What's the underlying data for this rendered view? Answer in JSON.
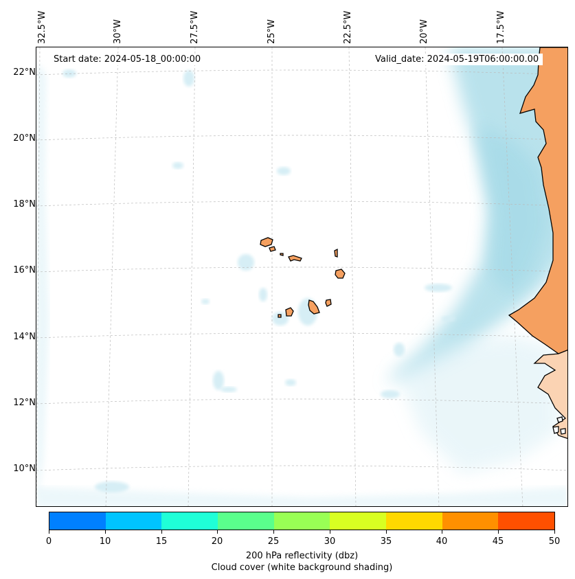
{
  "map": {
    "start_date": "Start date: 2024-05-18_00:00:00",
    "valid_date": "Valid_date: 2024-05-19T06:00:00.00",
    "lon_labels": [
      "32.5°W",
      "30°W",
      "27.5°W",
      "25°W",
      "22.5°W",
      "20°W",
      "17.5°W"
    ],
    "lat_labels": [
      "22°N",
      "20°N",
      "18°N",
      "16°N",
      "14°N",
      "12°N",
      "10°N"
    ],
    "colors": {
      "land": "#f5a060",
      "land_light": "#fbd3b3",
      "cloud": "#a8dbe8",
      "cloud_light": "#d6eef5",
      "gridline": "#bbbbbb"
    }
  },
  "colorbar": {
    "ticks": [
      "0",
      "10",
      "15",
      "20",
      "25",
      "30",
      "35",
      "40",
      "45",
      "50"
    ],
    "colors": [
      "#0080ff",
      "#00c4ff",
      "#1fffd7",
      "#5aff8c",
      "#99ff55",
      "#d8ff22",
      "#ffd800",
      "#ff9000",
      "#ff5000"
    ],
    "label": "200 hPa reflectivity (dbz)",
    "sublabel": "Cloud cover (white background shading)"
  }
}
